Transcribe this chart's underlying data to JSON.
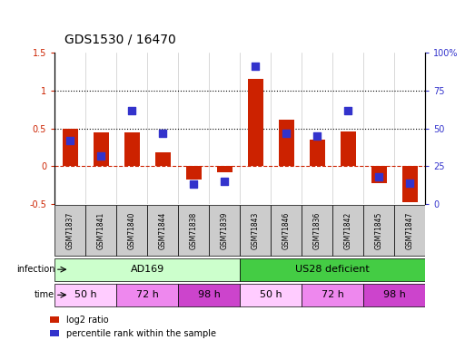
{
  "title": "GDS1530 / 16470",
  "samples": [
    "GSM71837",
    "GSM71841",
    "GSM71840",
    "GSM71844",
    "GSM71838",
    "GSM71839",
    "GSM71843",
    "GSM71846",
    "GSM71836",
    "GSM71842",
    "GSM71845",
    "GSM71847"
  ],
  "log2_ratio": [
    0.5,
    0.45,
    0.45,
    0.18,
    -0.18,
    -0.08,
    1.15,
    0.62,
    0.35,
    0.46,
    -0.22,
    -0.48
  ],
  "percentile_rank": [
    42,
    32,
    62,
    47,
    13,
    15,
    91,
    47,
    45,
    62,
    18,
    14
  ],
  "bar_color": "#cc2200",
  "dot_color": "#3333cc",
  "left_ylim": [
    -0.5,
    1.5
  ],
  "right_ylim": [
    0,
    100
  ],
  "left_yticks": [
    -0.5,
    0,
    0.5,
    1.0,
    1.5
  ],
  "right_yticks": [
    0,
    25,
    50,
    75,
    100
  ],
  "left_ytick_labels": [
    "-0.5",
    "0",
    "0.5",
    "1",
    "1.5"
  ],
  "right_ytick_labels": [
    "0",
    "25",
    "50",
    "75",
    "100%"
  ],
  "hline_0_color": "#cc2200",
  "hline_dotted_vals": [
    0.5,
    1.0
  ],
  "infection_row": [
    {
      "label": "AD169",
      "start": 0,
      "end": 6,
      "color": "#ccffcc"
    },
    {
      "label": "US28 deficient",
      "start": 6,
      "end": 12,
      "color": "#44cc44"
    }
  ],
  "time_row": [
    {
      "label": "50 h",
      "start": 0,
      "end": 2,
      "color": "#ffccff"
    },
    {
      "label": "72 h",
      "start": 2,
      "end": 4,
      "color": "#ee88ee"
    },
    {
      "label": "98 h",
      "start": 4,
      "end": 6,
      "color": "#cc44cc"
    },
    {
      "label": "50 h",
      "start": 6,
      "end": 8,
      "color": "#ffccff"
    },
    {
      "label": "72 h",
      "start": 8,
      "end": 10,
      "color": "#ee88ee"
    },
    {
      "label": "98 h",
      "start": 10,
      "end": 12,
      "color": "#cc44cc"
    }
  ],
  "legend_items": [
    {
      "label": "log2 ratio",
      "color": "#cc2200"
    },
    {
      "label": "percentile rank within the sample",
      "color": "#3333cc"
    }
  ],
  "ylabel_left_color": "#cc2200",
  "ylabel_right_color": "#3333cc",
  "bar_width": 0.5,
  "dot_size": 30,
  "sample_box_color": "#cccccc",
  "bg_color": "#ffffff"
}
